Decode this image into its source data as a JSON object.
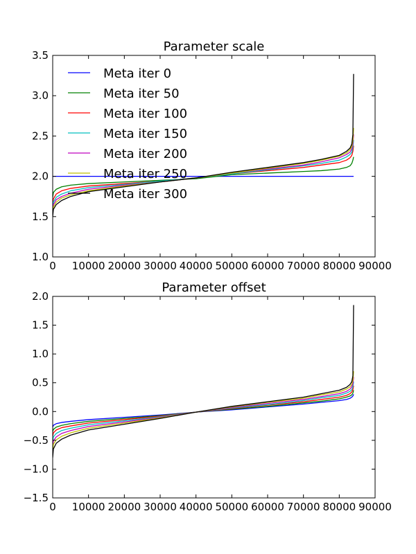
{
  "chart_data": [
    {
      "type": "line",
      "title": "Parameter scale",
      "xlabel": "",
      "ylabel": "",
      "xlim": [
        0,
        90000
      ],
      "ylim": [
        1.0,
        3.5
      ],
      "x_ticks": [
        "0",
        "10000",
        "20000",
        "30000",
        "40000",
        "50000",
        "60000",
        "70000",
        "80000",
        "90000"
      ],
      "y_ticks": [
        "1.0",
        "1.5",
        "2.0",
        "2.5",
        "3.0",
        "3.5"
      ],
      "y_tick_values": [
        1.0,
        1.5,
        2.0,
        2.5,
        3.0,
        3.5
      ],
      "grid": false,
      "legend": "top-left",
      "x": [
        0,
        200,
        1000,
        2500,
        5000,
        10000,
        20000,
        30000,
        40000,
        50000,
        60000,
        70000,
        75000,
        80000,
        82000,
        83000,
        83500,
        83800,
        84000
      ],
      "series": [
        {
          "name": "Meta iter 0",
          "color": "#0000ff",
          "values": [
            2.0,
            2.0,
            2.0,
            2.0,
            2.0,
            2.0,
            2.0,
            2.0,
            2.0,
            2.0,
            2.0,
            2.0,
            2.0,
            2.0,
            2.0,
            2.0,
            2.0,
            2.0,
            2.0
          ]
        },
        {
          "name": "Meta iter 50",
          "color": "#008000",
          "values": [
            1.74,
            1.8,
            1.84,
            1.87,
            1.89,
            1.91,
            1.93,
            1.95,
            1.97,
            2.02,
            2.04,
            2.06,
            2.07,
            2.09,
            2.11,
            2.13,
            2.16,
            2.2,
            2.24
          ]
        },
        {
          "name": "Meta iter 100",
          "color": "#ff0000",
          "values": [
            1.66,
            1.72,
            1.78,
            1.82,
            1.85,
            1.88,
            1.91,
            1.94,
            1.98,
            2.03,
            2.07,
            2.11,
            2.14,
            2.17,
            2.2,
            2.23,
            2.26,
            2.31,
            2.38
          ]
        },
        {
          "name": "Meta iter 150",
          "color": "#00bfbf",
          "values": [
            1.62,
            1.68,
            1.74,
            1.78,
            1.82,
            1.86,
            1.9,
            1.94,
            1.98,
            2.03,
            2.08,
            2.13,
            2.16,
            2.2,
            2.24,
            2.27,
            2.3,
            2.36,
            2.45
          ]
        },
        {
          "name": "Meta iter 200",
          "color": "#bf00bf",
          "values": [
            1.58,
            1.65,
            1.71,
            1.75,
            1.79,
            1.84,
            1.89,
            1.93,
            1.98,
            2.04,
            2.09,
            2.14,
            2.18,
            2.23,
            2.27,
            2.3,
            2.34,
            2.4,
            2.52
          ]
        },
        {
          "name": "Meta iter 250",
          "color": "#bfbf00",
          "values": [
            1.55,
            1.62,
            1.68,
            1.73,
            1.77,
            1.82,
            1.88,
            1.93,
            1.98,
            2.04,
            2.1,
            2.16,
            2.2,
            2.25,
            2.29,
            2.33,
            2.37,
            2.44,
            2.6
          ]
        },
        {
          "name": "Meta iter 300",
          "color": "#000000",
          "values": [
            1.5,
            1.59,
            1.65,
            1.7,
            1.75,
            1.81,
            1.87,
            1.93,
            1.98,
            2.05,
            2.11,
            2.17,
            2.21,
            2.26,
            2.31,
            2.35,
            2.4,
            2.52,
            3.27
          ]
        }
      ]
    },
    {
      "type": "line",
      "title": "Parameter offset",
      "xlabel": "",
      "ylabel": "",
      "xlim": [
        0,
        90000
      ],
      "ylim": [
        -1.5,
        2.0
      ],
      "x_ticks": [
        "0",
        "10000",
        "20000",
        "30000",
        "40000",
        "50000",
        "60000",
        "70000",
        "80000",
        "90000"
      ],
      "y_ticks": [
        "−1.5",
        "−1.0",
        "−0.5",
        "0.0",
        "0.5",
        "1.0",
        "1.5",
        "2.0"
      ],
      "y_tick_values": [
        -1.5,
        -1.0,
        -0.5,
        0.0,
        0.5,
        1.0,
        1.5,
        2.0
      ],
      "grid": false,
      "legend": "none",
      "x": [
        0,
        200,
        1000,
        2500,
        5000,
        10000,
        20000,
        30000,
        40000,
        50000,
        60000,
        70000,
        75000,
        80000,
        82000,
        83000,
        83500,
        83800,
        84000
      ],
      "series": [
        {
          "name": "Meta iter 0",
          "color": "#0000ff",
          "values": [
            -0.27,
            -0.24,
            -0.21,
            -0.19,
            -0.17,
            -0.14,
            -0.1,
            -0.06,
            -0.01,
            0.03,
            0.08,
            0.13,
            0.16,
            0.19,
            0.21,
            0.23,
            0.25,
            0.27,
            0.3
          ]
        },
        {
          "name": "Meta iter 50",
          "color": "#008000",
          "values": [
            -0.35,
            -0.31,
            -0.27,
            -0.24,
            -0.21,
            -0.17,
            -0.12,
            -0.07,
            -0.01,
            0.04,
            0.09,
            0.15,
            0.18,
            0.22,
            0.25,
            0.27,
            0.29,
            0.32,
            0.37
          ]
        },
        {
          "name": "Meta iter 100",
          "color": "#ff0000",
          "values": [
            -0.43,
            -0.37,
            -0.32,
            -0.28,
            -0.25,
            -0.2,
            -0.14,
            -0.08,
            -0.01,
            0.05,
            0.11,
            0.17,
            0.21,
            0.25,
            0.28,
            0.31,
            0.34,
            0.38,
            0.45
          ]
        },
        {
          "name": "Meta iter 150",
          "color": "#00bfbf",
          "values": [
            -0.51,
            -0.44,
            -0.38,
            -0.33,
            -0.29,
            -0.23,
            -0.16,
            -0.09,
            -0.01,
            0.06,
            0.12,
            0.19,
            0.24,
            0.28,
            0.32,
            0.35,
            0.38,
            0.43,
            0.52
          ]
        },
        {
          "name": "Meta iter 200",
          "color": "#bf00bf",
          "values": [
            -0.59,
            -0.51,
            -0.44,
            -0.38,
            -0.33,
            -0.26,
            -0.18,
            -0.1,
            -0.01,
            0.07,
            0.14,
            0.21,
            0.26,
            0.31,
            0.35,
            0.39,
            0.43,
            0.48,
            0.6
          ]
        },
        {
          "name": "Meta iter 250",
          "color": "#bfbf00",
          "values": [
            -0.67,
            -0.57,
            -0.49,
            -0.43,
            -0.37,
            -0.29,
            -0.2,
            -0.11,
            -0.01,
            0.08,
            0.16,
            0.23,
            0.29,
            0.34,
            0.39,
            0.43,
            0.47,
            0.54,
            0.7
          ]
        },
        {
          "name": "Meta iter 300",
          "color": "#000000",
          "values": [
            -0.8,
            -0.65,
            -0.55,
            -0.48,
            -0.41,
            -0.32,
            -0.22,
            -0.12,
            -0.01,
            0.09,
            0.17,
            0.25,
            0.31,
            0.37,
            0.42,
            0.47,
            0.52,
            0.62,
            1.85
          ]
        }
      ]
    }
  ]
}
